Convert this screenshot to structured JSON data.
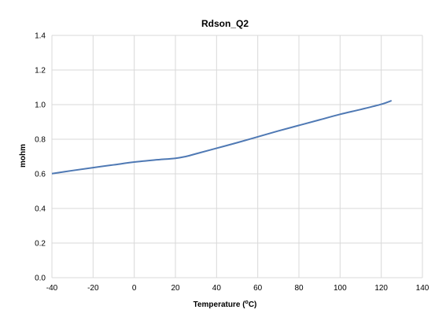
{
  "chart_data": {
    "type": "line",
    "title": "Rdson_Q2",
    "xlabel": "Temperature (",
    "xlabel_sup": "o",
    "xlabel_suffix": "C)",
    "ylabel": "mohm",
    "xlim": [
      -40,
      140
    ],
    "ylim": [
      0,
      1.4
    ],
    "xticks": [
      -40,
      -20,
      0,
      20,
      40,
      60,
      80,
      100,
      120,
      140
    ],
    "yticks": [
      0.0,
      0.2,
      0.4,
      0.6,
      0.8,
      1.0,
      1.2,
      1.4
    ],
    "ytick_labels": [
      "0.0",
      "0.2",
      "0.4",
      "0.6",
      "0.8",
      "1.0",
      "1.2",
      "1.4"
    ],
    "grid": true,
    "series": [
      {
        "color": "#4f79b4",
        "x": [
          -40,
          -30,
          -20,
          -10,
          0,
          10,
          20,
          25,
          30,
          40,
          50,
          60,
          70,
          80,
          90,
          100,
          110,
          120,
          125
        ],
        "y": [
          0.601,
          0.619,
          0.636,
          0.652,
          0.668,
          0.68,
          0.69,
          0.7,
          0.716,
          0.748,
          0.78,
          0.814,
          0.848,
          0.88,
          0.912,
          0.944,
          0.972,
          1.002,
          1.023
        ]
      }
    ]
  }
}
